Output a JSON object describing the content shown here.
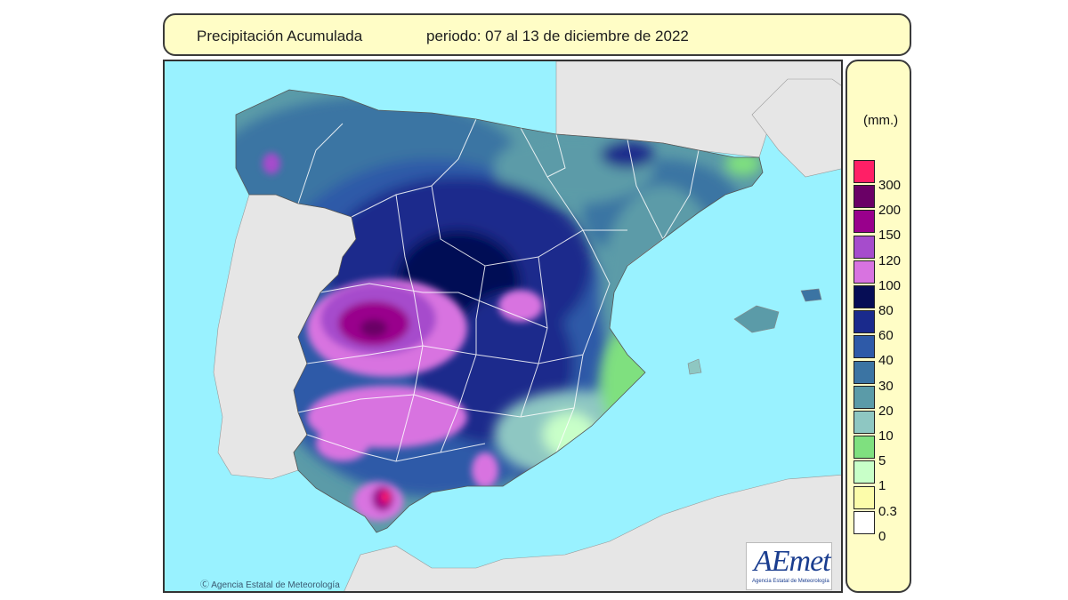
{
  "title": {
    "label": "Precipitación Acumulada",
    "period": "periodo: 07 al 13 de diciembre de 2022"
  },
  "legend": {
    "unit": "(mm.)",
    "items": [
      {
        "value": "300",
        "color": "#ff1f66"
      },
      {
        "value": "200",
        "color": "#6a0066"
      },
      {
        "value": "150",
        "color": "#99008c"
      },
      {
        "value": "120",
        "color": "#a64ccc"
      },
      {
        "value": "100",
        "color": "#d873e0"
      },
      {
        "value": "80",
        "color": "#060d55"
      },
      {
        "value": "60",
        "color": "#1a2a8c"
      },
      {
        "value": "40",
        "color": "#2e5aa8"
      },
      {
        "value": "30",
        "color": "#3b74a3"
      },
      {
        "value": "20",
        "color": "#5b9ba8"
      },
      {
        "value": "10",
        "color": "#8ec7c2"
      },
      {
        "value": "5",
        "color": "#7fe07f"
      },
      {
        "value": "1",
        "color": "#c8ffc8"
      },
      {
        "value": "0.3",
        "color": "#fcfcaa"
      },
      {
        "value": "0",
        "color": "#ffffff"
      }
    ]
  },
  "map": {
    "credit": "Agencia Estatal de Meteorología",
    "logo_text": "AEmet",
    "logo_subtitle": "Agencia Estatal de Meteorología",
    "colors": {
      "sea": "#99f2ff",
      "land": "#e6e6e6"
    }
  }
}
